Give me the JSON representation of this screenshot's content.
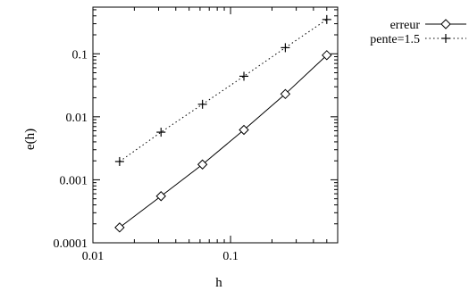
{
  "chart_data": {
    "type": "line",
    "x_scale": "log",
    "y_scale": "log",
    "xlabel": "h",
    "ylabel": "e(h)",
    "xlim": [
      0.01,
      0.6
    ],
    "ylim": [
      0.0001,
      0.55
    ],
    "x_ticks": [
      {
        "value": 0.01,
        "label": "0.01"
      },
      {
        "value": 0.1,
        "label": "0.1"
      }
    ],
    "y_ticks": [
      {
        "value": 0.0001,
        "label": "0.0001"
      },
      {
        "value": 0.001,
        "label": "0.001"
      },
      {
        "value": 0.01,
        "label": "0.01"
      },
      {
        "value": 0.1,
        "label": "0.1"
      }
    ],
    "grid": false,
    "legend_position": "outside top-right",
    "series": [
      {
        "name": "erreur",
        "line_style": "solid",
        "marker": "diamond",
        "color": "#000000",
        "x": [
          0.015625,
          0.03125,
          0.0625,
          0.125,
          0.25,
          0.5
        ],
        "y": [
          0.000175,
          0.00055,
          0.00175,
          0.0062,
          0.023,
          0.095
        ]
      },
      {
        "name": "pente=1.5",
        "line_style": "dotted",
        "marker": "plus",
        "color": "#000000",
        "x": [
          0.015625,
          0.03125,
          0.0625,
          0.125,
          0.25,
          0.5
        ],
        "y": [
          0.00195,
          0.0057,
          0.0158,
          0.044,
          0.125,
          0.35
        ]
      }
    ]
  }
}
